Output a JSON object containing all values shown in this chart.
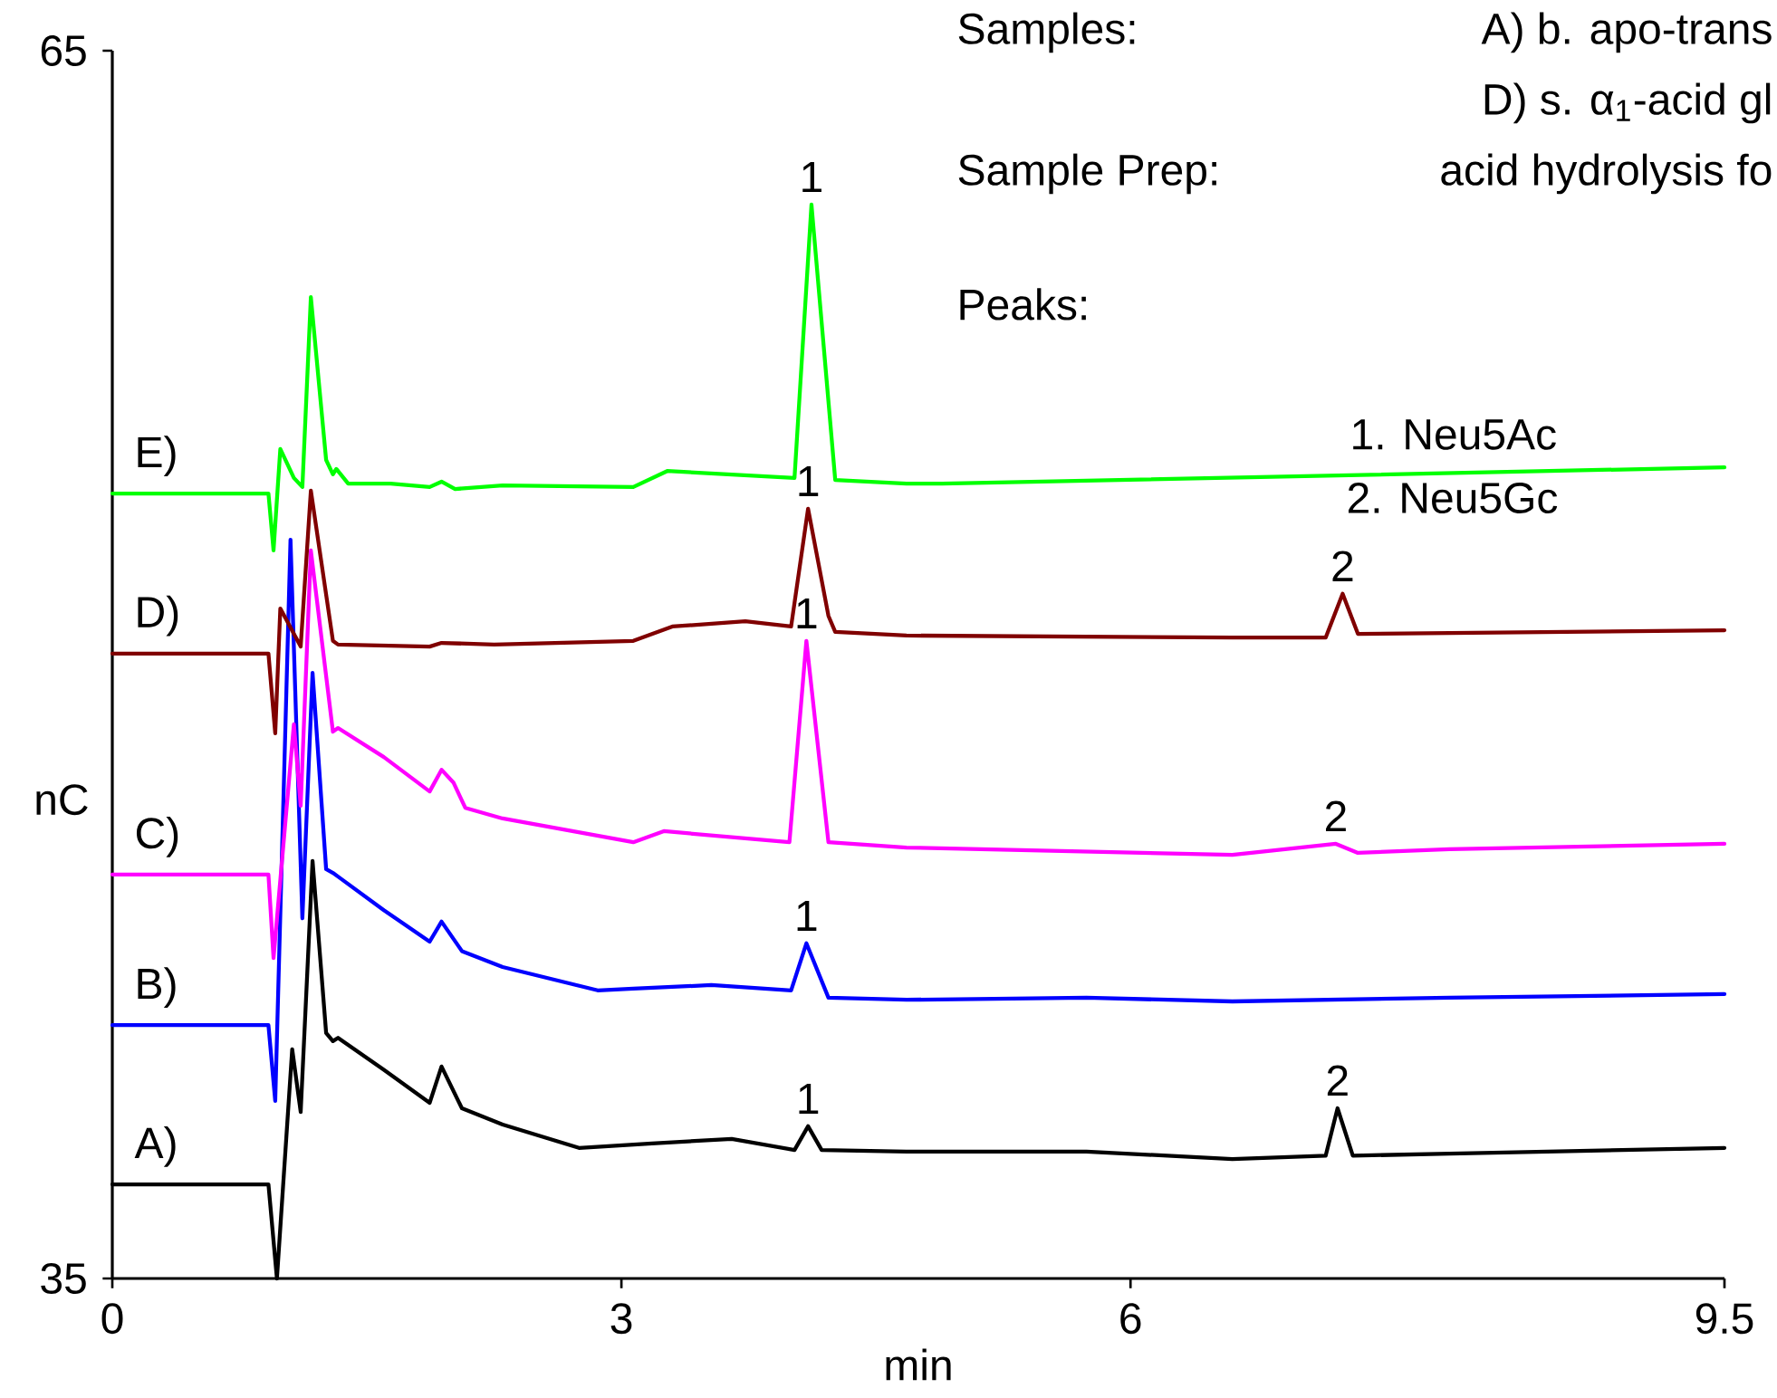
{
  "chart_data": {
    "type": "line",
    "xlabel": "min",
    "ylabel": "nC",
    "xlim": [
      0,
      9.5
    ],
    "ylim": [
      35,
      65
    ],
    "xticks": [
      0,
      3,
      6,
      9.5
    ],
    "yticks": [
      35,
      65
    ],
    "series": [
      {
        "name": "A)",
        "color": "#000000",
        "x": [
          0,
          0.92,
          0.97,
          1.06,
          1.11,
          1.18,
          1.26,
          1.3,
          1.33,
          1.6,
          1.87,
          1.94,
          2.06,
          2.3,
          2.75,
          3.18,
          3.65,
          4.02,
          4.1,
          4.18,
          4.68,
          5.74,
          6.6,
          7.15,
          7.22,
          7.31,
          7.88,
          9.5
        ],
        "values": [
          37.3,
          37.3,
          35.0,
          40.6,
          39.07,
          45.2,
          41.0,
          40.8,
          40.88,
          40.1,
          39.29,
          40.18,
          39.16,
          38.76,
          38.19,
          38.3,
          38.41,
          38.14,
          38.72,
          38.14,
          38.1,
          38.1,
          37.92,
          38.0,
          39.16,
          38.0,
          38.05,
          38.19
        ]
      },
      {
        "name": "B)",
        "color": "#0000ff",
        "x": [
          0,
          0.92,
          0.96,
          1.05,
          1.12,
          1.18,
          1.26,
          1.3,
          1.33,
          1.6,
          1.87,
          1.94,
          2.06,
          2.3,
          2.86,
          3.07,
          3.53,
          4.0,
          4.09,
          4.22,
          4.68,
          5.74,
          6.6,
          7.88,
          9.5
        ],
        "values": [
          41.19,
          41.19,
          39.34,
          53.05,
          43.8,
          49.8,
          45.0,
          44.91,
          44.82,
          44.0,
          43.23,
          43.72,
          43.0,
          42.61,
          42.04,
          42.08,
          42.17,
          42.04,
          43.19,
          41.86,
          41.81,
          41.86,
          41.77,
          41.86,
          41.95
        ]
      },
      {
        "name": "C)",
        "color": "#ff00ff",
        "x": [
          0,
          0.92,
          0.95,
          1.07,
          1.11,
          1.17,
          1.3,
          1.33,
          1.6,
          1.87,
          1.94,
          2.01,
          2.08,
          2.3,
          3.07,
          3.25,
          3.99,
          4.09,
          4.22,
          4.68,
          6.6,
          7.21,
          7.34,
          7.88,
          9.5
        ],
        "values": [
          44.87,
          44.87,
          42.83,
          48.54,
          46.55,
          52.79,
          48.36,
          48.45,
          47.74,
          46.9,
          47.43,
          47.12,
          46.5,
          46.24,
          45.66,
          45.93,
          45.66,
          50.58,
          45.66,
          45.53,
          45.35,
          45.62,
          45.4,
          45.49,
          45.62
        ]
      },
      {
        "name": "D)",
        "color": "#800000",
        "x": [
          0,
          0.92,
          0.96,
          0.99,
          1.11,
          1.17,
          1.3,
          1.33,
          1.87,
          1.94,
          2.25,
          3.07,
          3.3,
          3.73,
          4.0,
          4.1,
          4.22,
          4.26,
          4.68,
          6.6,
          7.15,
          7.25,
          7.34,
          9.5
        ],
        "values": [
          50.27,
          50.27,
          48.32,
          51.37,
          50.44,
          54.25,
          50.58,
          50.49,
          50.44,
          50.53,
          50.49,
          50.58,
          50.93,
          51.06,
          50.93,
          53.81,
          51.19,
          50.8,
          50.71,
          50.66,
          50.66,
          51.73,
          50.75,
          50.84
        ]
      },
      {
        "name": "E)",
        "color": "#00ff00",
        "x": [
          0,
          0.92,
          0.95,
          0.99,
          1.07,
          1.12,
          1.17,
          1.26,
          1.3,
          1.32,
          1.39,
          1.64,
          1.87,
          1.94,
          2.02,
          2.3,
          3.07,
          3.27,
          4.02,
          4.12,
          4.26,
          4.68,
          4.89,
          9.5
        ],
        "values": [
          54.18,
          54.18,
          52.79,
          55.27,
          54.56,
          54.34,
          58.98,
          55.0,
          54.65,
          54.78,
          54.42,
          54.42,
          54.34,
          54.47,
          54.29,
          54.38,
          54.34,
          54.73,
          54.56,
          61.24,
          54.51,
          54.42,
          54.42,
          54.82
        ]
      }
    ],
    "annotations": [
      "Samples:",
      "A) b. apo-trans",
      "D) s. α$_{1}$-acid gl",
      "Sample Prep:",
      "acid hydrolysis fo",
      "Peaks:",
      "1.  Neu5Ac",
      "2.  Neu5Gc",
      {
        "text": "1",
        "x": 4.12,
        "y": 61.24
      },
      {
        "text": "1",
        "x": 4.1,
        "y": 53.81
      },
      {
        "text": "1",
        "x": 4.09,
        "y": 50.58
      },
      {
        "text": "1",
        "x": 4.09,
        "y": 43.19
      },
      {
        "text": "1",
        "x": 4.1,
        "y": 38.72
      },
      {
        "text": "2",
        "x": 7.25,
        "y": 51.73
      },
      {
        "text": "2",
        "x": 7.21,
        "y": 45.62
      },
      {
        "text": "2",
        "x": 7.22,
        "y": 39.16
      }
    ]
  }
}
